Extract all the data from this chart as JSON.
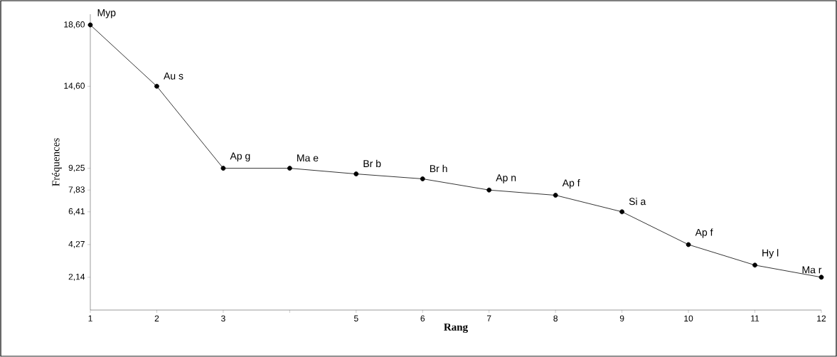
{
  "chart_data": {
    "type": "line",
    "xlabel": "Rang",
    "ylabel": "Fréquences",
    "x": [
      1,
      2,
      3,
      4,
      5,
      6,
      7,
      8,
      9,
      10,
      11,
      12
    ],
    "values": [
      18.6,
      14.6,
      9.25,
      9.25,
      8.88,
      8.56,
      7.83,
      7.49,
      6.41,
      4.27,
      2.93,
      2.14
    ],
    "color": "#000000",
    "marker": "circle",
    "line_style": "solid",
    "grid": false,
    "xlim": [
      1,
      12
    ],
    "ylim": [
      0,
      19.3
    ],
    "xticks": [
      1,
      2,
      3,
      {
        "value": 4,
        "label": null
      },
      5,
      6,
      7,
      8,
      9,
      10,
      11,
      12
    ],
    "yticks": [
      {
        "value": 2.14,
        "label": "2,14"
      },
      {
        "value": 4.27,
        "label": "4,27"
      },
      {
        "value": 6.41,
        "label": "6,41"
      },
      {
        "value": 7.83,
        "label": "7,83"
      },
      {
        "value": 9.25,
        "label": "9,25"
      },
      {
        "value": 14.6,
        "label": "14,60"
      },
      {
        "value": 18.6,
        "label": "18,60"
      }
    ],
    "annotations": [
      {
        "text": "Myp",
        "x": 1,
        "y": 18.6
      },
      {
        "text": "Au s",
        "x": 2,
        "y": 14.6
      },
      {
        "text": "Ap g",
        "x": 3,
        "y": 9.25
      },
      {
        "text": "Ma e",
        "x": 4,
        "y": 9.25
      },
      {
        "text": "Br b",
        "x": 5,
        "y": 8.88
      },
      {
        "text": "Br h",
        "x": 6,
        "y": 8.56
      },
      {
        "text": "Ap n",
        "x": 7,
        "y": 7.83
      },
      {
        "text": "Ap f",
        "x": 8,
        "y": 7.49
      },
      {
        "text": "Si a",
        "x": 9,
        "y": 6.41
      },
      {
        "text": "Ap f",
        "x": 10,
        "y": 4.27
      },
      {
        "text": "Hy l",
        "x": 11,
        "y": 2.93
      },
      {
        "text": "Ma r",
        "x": 12,
        "y": 2.14
      }
    ]
  }
}
